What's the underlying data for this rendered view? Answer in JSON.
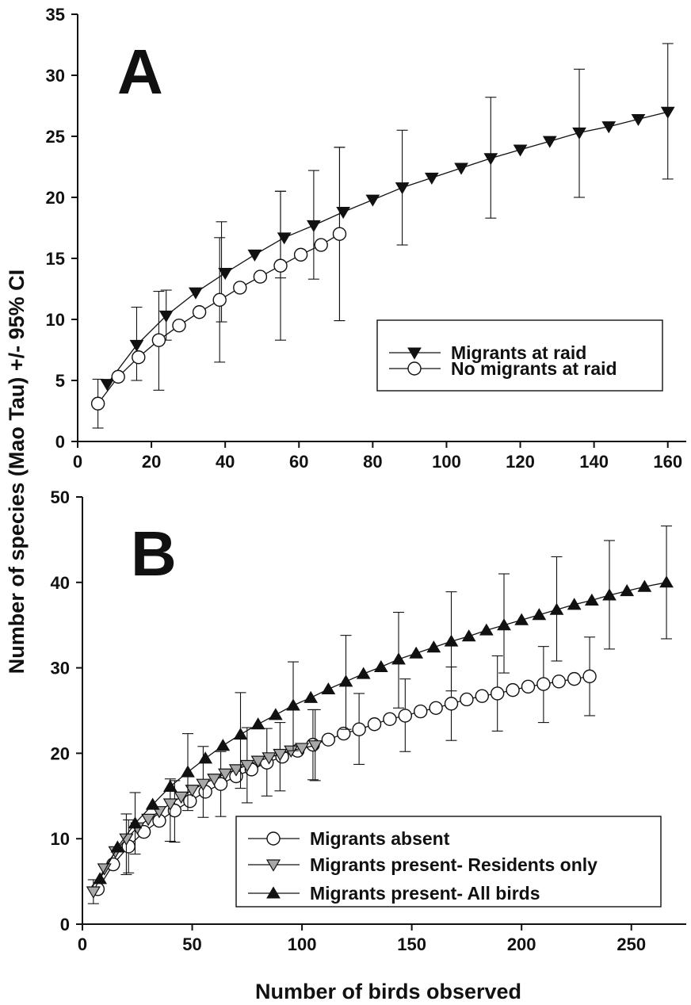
{
  "shared": {
    "ylabel": "Number of species (Mao Tau) +/- 95% CI",
    "xlabel": "Number of birds observed"
  },
  "chart_data": [
    {
      "type": "line",
      "panel_label": "A",
      "xlim": [
        0,
        165
      ],
      "ylim": [
        0,
        35
      ],
      "xticks": [
        0,
        20,
        40,
        60,
        80,
        100,
        120,
        140,
        160
      ],
      "yticks": [
        0,
        5,
        10,
        15,
        20,
        25,
        30,
        35
      ],
      "legend_position": "lower-right",
      "series": [
        {
          "name": "Migrants at raid",
          "marker": "triangle-down-filled",
          "points": [
            [
              8,
              4.7
            ],
            [
              16,
              7.9
            ],
            [
              24,
              10.3
            ],
            [
              32,
              12.2
            ],
            [
              40,
              13.8
            ],
            [
              48,
              15.3
            ],
            [
              56,
              16.7
            ],
            [
              64,
              17.7
            ],
            [
              72,
              18.8
            ],
            [
              80,
              19.8
            ],
            [
              88,
              20.8
            ],
            [
              96,
              21.6
            ],
            [
              104,
              22.4
            ],
            [
              112,
              23.2
            ],
            [
              120,
              23.9
            ],
            [
              128,
              24.6
            ],
            [
              136,
              25.3
            ],
            [
              144,
              25.8
            ],
            [
              152,
              26.4
            ],
            [
              160,
              27.0
            ]
          ],
          "errors": [
            [
              16,
              5.0,
              11.0
            ],
            [
              24,
              8.3,
              12.4
            ],
            [
              39,
              9.8,
              18.0
            ],
            [
              55,
              13.4,
              20.5
            ],
            [
              64,
              13.3,
              22.2
            ],
            [
              71,
              9.9,
              24.1
            ],
            [
              88,
              16.1,
              25.5
            ],
            [
              112,
              18.3,
              28.2
            ],
            [
              136,
              20.0,
              30.5
            ],
            [
              160,
              21.5,
              32.6
            ]
          ]
        },
        {
          "name": "No migrants at raid",
          "marker": "circle-open",
          "points": [
            [
              5.5,
              3.1
            ],
            [
              11,
              5.3
            ],
            [
              16.5,
              6.9
            ],
            [
              22,
              8.3
            ],
            [
              27.5,
              9.5
            ],
            [
              33,
              10.6
            ],
            [
              38.5,
              11.6
            ],
            [
              44,
              12.6
            ],
            [
              49.5,
              13.5
            ],
            [
              55,
              14.4
            ],
            [
              60.5,
              15.3
            ],
            [
              66,
              16.1
            ],
            [
              71,
              17.0
            ]
          ],
          "errors": [
            [
              5.5,
              1.1,
              5.1
            ],
            [
              22,
              4.2,
              12.3
            ],
            [
              38.5,
              6.5,
              16.7
            ],
            [
              55,
              8.3,
              20.5
            ],
            [
              71,
              9.9,
              24.1
            ]
          ]
        }
      ]
    },
    {
      "type": "line",
      "panel_label": "B",
      "xlim": [
        0,
        275
      ],
      "ylim": [
        0,
        50
      ],
      "xticks": [
        0,
        50,
        100,
        150,
        200,
        250
      ],
      "yticks": [
        0,
        10,
        20,
        30,
        40,
        50
      ],
      "legend_position": "lower-right",
      "series": [
        {
          "name": "Migrants absent",
          "marker": "circle-open",
          "points": [
            [
              7,
              4.1
            ],
            [
              14,
              7.0
            ],
            [
              21,
              9.1
            ],
            [
              28,
              10.8
            ],
            [
              35,
              12.1
            ],
            [
              42,
              13.3
            ],
            [
              49,
              14.4
            ],
            [
              56,
              15.5
            ],
            [
              63,
              16.4
            ],
            [
              70,
              17.3
            ],
            [
              77,
              18.1
            ],
            [
              84,
              18.9
            ],
            [
              91,
              19.6
            ],
            [
              98,
              20.3
            ],
            [
              105,
              21.0
            ],
            [
              112,
              21.6
            ],
            [
              119,
              22.3
            ],
            [
              126,
              22.8
            ],
            [
              133,
              23.4
            ],
            [
              140,
              24.0
            ],
            [
              147,
              24.4
            ],
            [
              154,
              24.9
            ],
            [
              161,
              25.3
            ],
            [
              168,
              25.8
            ],
            [
              175,
              26.3
            ],
            [
              182,
              26.7
            ],
            [
              189,
              27.0
            ],
            [
              196,
              27.4
            ],
            [
              203,
              27.8
            ],
            [
              210,
              28.1
            ],
            [
              217,
              28.4
            ],
            [
              224,
              28.7
            ],
            [
              231,
              29.0
            ]
          ],
          "errors": [
            [
              21,
              6.0,
              12.2
            ],
            [
              42,
              9.6,
              16.8
            ],
            [
              63,
              12.6,
              20.2
            ],
            [
              84,
              15.0,
              22.9
            ],
            [
              105,
              16.9,
              25.1
            ],
            [
              126,
              18.7,
              27.0
            ],
            [
              147,
              20.2,
              28.7
            ],
            [
              168,
              21.5,
              30.1
            ],
            [
              189,
              22.6,
              31.4
            ],
            [
              210,
              23.6,
              32.5
            ],
            [
              231,
              24.4,
              33.6
            ]
          ]
        },
        {
          "name": "Migrants present- Residents only",
          "marker": "triangle-down-gray",
          "points": [
            [
              5,
              3.8
            ],
            [
              10,
              6.5
            ],
            [
              15,
              8.5
            ],
            [
              20,
              10.0
            ],
            [
              25,
              11.3
            ],
            [
              30,
              12.3
            ],
            [
              35,
              13.2
            ],
            [
              40,
              14.1
            ],
            [
              45,
              14.9
            ],
            [
              50,
              15.7
            ],
            [
              55,
              16.4
            ],
            [
              60,
              17.0
            ],
            [
              65,
              17.6
            ],
            [
              70,
              18.1
            ],
            [
              75,
              18.6
            ],
            [
              80,
              19.1
            ],
            [
              85,
              19.5
            ],
            [
              90,
              19.9
            ],
            [
              95,
              20.3
            ],
            [
              100,
              20.6
            ],
            [
              106,
              20.9
            ]
          ],
          "errors": [
            [
              5,
              2.4,
              5.2
            ],
            [
              20,
              5.8,
              12.9
            ],
            [
              40,
              9.7,
              17.0
            ],
            [
              55,
              12.5,
              20.8
            ],
            [
              75,
              14.2,
              23.0
            ],
            [
              90,
              15.6,
              23.6
            ],
            [
              106,
              16.8,
              25.1
            ]
          ]
        },
        {
          "name": "Migrants present- All birds",
          "marker": "triangle-up-filled",
          "points": [
            [
              8,
              5.3
            ],
            [
              16,
              9.0
            ],
            [
              24,
              11.8
            ],
            [
              32,
              14.0
            ],
            [
              40,
              16.1
            ],
            [
              48,
              17.8
            ],
            [
              56,
              19.4
            ],
            [
              64,
              20.9
            ],
            [
              72,
              22.2
            ],
            [
              80,
              23.4
            ],
            [
              88,
              24.5
            ],
            [
              96,
              25.6
            ],
            [
              104,
              26.5
            ],
            [
              112,
              27.5
            ],
            [
              120,
              28.4
            ],
            [
              128,
              29.3
            ],
            [
              136,
              30.1
            ],
            [
              144,
              31.0
            ],
            [
              152,
              31.7
            ],
            [
              160,
              32.4
            ],
            [
              168,
              33.1
            ],
            [
              176,
              33.7
            ],
            [
              184,
              34.4
            ],
            [
              192,
              35.0
            ],
            [
              200,
              35.6
            ],
            [
              208,
              36.2
            ],
            [
              216,
              36.8
            ],
            [
              224,
              37.4
            ],
            [
              232,
              37.9
            ],
            [
              240,
              38.5
            ],
            [
              248,
              39.0
            ],
            [
              256,
              39.5
            ],
            [
              266,
              40.0
            ]
          ],
          "errors": [
            [
              24,
              8.2,
              15.4
            ],
            [
              48,
              13.3,
              22.3
            ],
            [
              72,
              15.9,
              27.1
            ],
            [
              96,
              20.3,
              30.7
            ],
            [
              120,
              22.8,
              33.8
            ],
            [
              144,
              25.3,
              36.5
            ],
            [
              168,
              27.3,
              38.9
            ],
            [
              192,
              29.4,
              41.0
            ],
            [
              216,
              30.8,
              43.0
            ],
            [
              240,
              32.2,
              44.9
            ],
            [
              266,
              33.4,
              46.6
            ]
          ]
        }
      ]
    }
  ]
}
